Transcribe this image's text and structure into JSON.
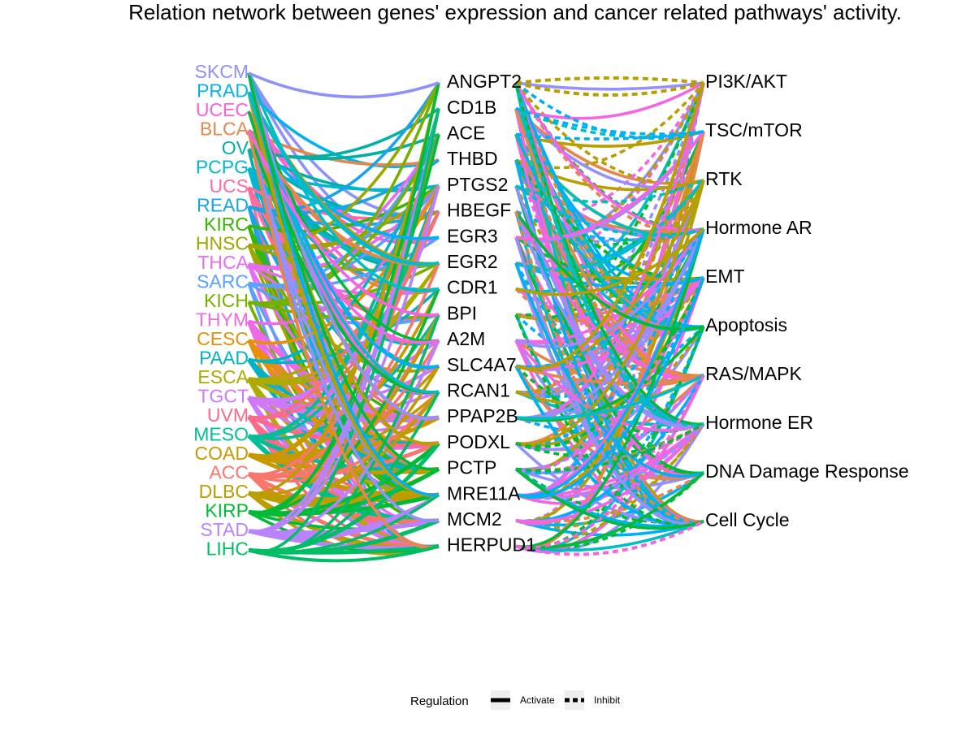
{
  "title": "Relation network between genes' expression and cancer related pathways' activity.",
  "cancers": [
    {
      "name": "SKCM",
      "color": "#8e91f7"
    },
    {
      "name": "PRAD",
      "color": "#00b2ee"
    },
    {
      "name": "UCEC",
      "color": "#fb61d7"
    },
    {
      "name": "BLCA",
      "color": "#e7864b"
    },
    {
      "name": "OV",
      "color": "#00b0a5"
    },
    {
      "name": "PCPG",
      "color": "#00b6d2"
    },
    {
      "name": "UCS",
      "color": "#ff6c9c"
    },
    {
      "name": "READ",
      "color": "#1aa4e8"
    },
    {
      "name": "KIRC",
      "color": "#36b600"
    },
    {
      "name": "HNSC",
      "color": "#9ca600"
    },
    {
      "name": "THCA",
      "color": "#e76bf3"
    },
    {
      "name": "SARC",
      "color": "#5aa1ff"
    },
    {
      "name": "KICH",
      "color": "#74b000"
    },
    {
      "name": "THYM",
      "color": "#ec6ae3"
    },
    {
      "name": "CESC",
      "color": "#e6900a"
    },
    {
      "name": "PAAD",
      "color": "#00b3c6"
    },
    {
      "name": "ESCA",
      "color": "#adaa00"
    },
    {
      "name": "TGCT",
      "color": "#d177fa"
    },
    {
      "name": "UVM",
      "color": "#fb6a8a"
    },
    {
      "name": "MESO",
      "color": "#00bf96"
    },
    {
      "name": "COAD",
      "color": "#c99800"
    },
    {
      "name": "ACC",
      "color": "#f8766d"
    },
    {
      "name": "DLBC",
      "color": "#bc9d00"
    },
    {
      "name": "KIRP",
      "color": "#00ba38"
    },
    {
      "name": "STAD",
      "color": "#b983ff"
    },
    {
      "name": "LIHC",
      "color": "#00bd66"
    }
  ],
  "genes": [
    "ANGPT2",
    "CD1B",
    "ACE",
    "THBD",
    "PTGS2",
    "HBEGF",
    "EGR3",
    "EGR2",
    "CDR1",
    "BPI",
    "A2M",
    "SLC4A7",
    "RCAN1",
    "PPAP2B",
    "PODXL",
    "PCTP",
    "MRE11A",
    "MCM2",
    "HERPUD1"
  ],
  "pathways": [
    "PI3K/AKT",
    "TSC/mTOR",
    "RTK",
    "Hormone AR",
    "EMT",
    "Apoptosis",
    "RAS/MAPK",
    "Hormone ER",
    "DNA Damage Response",
    "Cell Cycle"
  ],
  "edge_colors": {
    "pink": "#f564e3",
    "blue": "#00b0f6",
    "green": "#00ba38",
    "olive": "#b79f00",
    "orange": "#e7864b",
    "purple": "#9590ff",
    "teal": "#00bfc4"
  },
  "legend": {
    "title": "Regulation",
    "activate": "Activate",
    "inhibit": "Inhibit"
  }
}
